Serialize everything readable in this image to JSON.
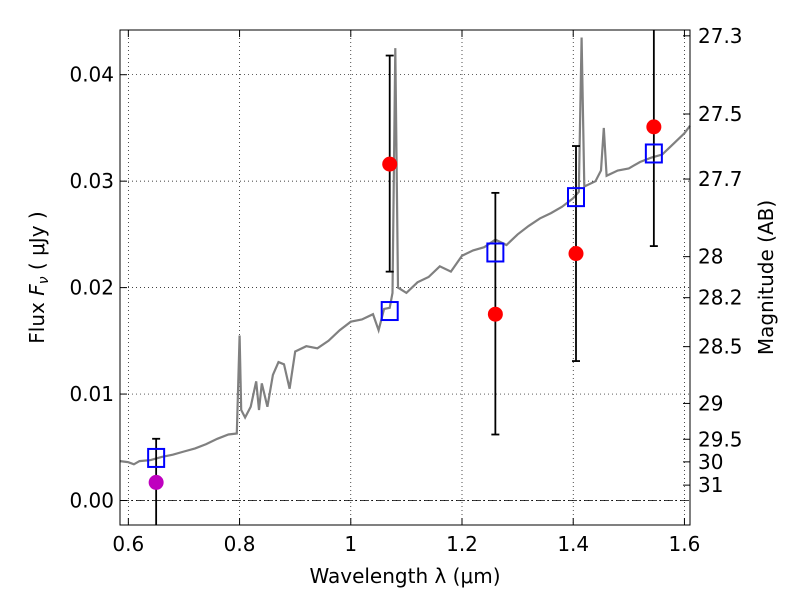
{
  "chart_data": {
    "type": "scatter",
    "xlabel": "Wavelength  λ (μm)",
    "ylabel_parts": [
      "Flux ",
      "F",
      "ν",
      " ( μJy )"
    ],
    "ylabel2": "Magnitude (AB)",
    "xlim": [
      0.585,
      1.61
    ],
    "ylim": [
      -0.0023,
      0.0442
    ],
    "x_ticks": [
      0.6,
      0.8,
      1.0,
      1.2,
      1.4,
      1.6
    ],
    "x_tick_labels": [
      "0.6",
      "0.8",
      "1",
      "1.2",
      "1.4",
      "1.6"
    ],
    "y_ticks": [
      0.0,
      0.01,
      0.02,
      0.03,
      0.04
    ],
    "y_tick_labels": [
      "0.00",
      "0.01",
      "0.02",
      "0.03",
      "0.04"
    ],
    "mag_ticks": [
      27.3,
      27.5,
      27.7,
      28,
      28.2,
      28.5,
      29,
      29.5,
      30,
      31
    ],
    "mag_tick_labels": [
      "27.3",
      "27.5",
      "27.7",
      "28",
      "28.2",
      "28.5",
      "29",
      "29.5",
      "30",
      "31"
    ],
    "grid": true,
    "colors": {
      "spectrum": "#808080",
      "model_box": "#0000ff",
      "observed": "#ff0000",
      "upper_limit": "#bf00bf",
      "errorbar": "#000000"
    },
    "series": [
      {
        "kind": "spectrum",
        "points": [
          [
            0.585,
            0.0037
          ],
          [
            0.6,
            0.0036
          ],
          [
            0.61,
            0.0034
          ],
          [
            0.62,
            0.0037
          ],
          [
            0.64,
            0.0038
          ],
          [
            0.66,
            0.0041
          ],
          [
            0.68,
            0.0043
          ],
          [
            0.7,
            0.0046
          ],
          [
            0.72,
            0.0049
          ],
          [
            0.74,
            0.0053
          ],
          [
            0.76,
            0.0058
          ],
          [
            0.78,
            0.0062
          ],
          [
            0.795,
            0.0063
          ],
          [
            0.8,
            0.0155
          ],
          [
            0.803,
            0.0085
          ],
          [
            0.81,
            0.0078
          ],
          [
            0.82,
            0.0088
          ],
          [
            0.83,
            0.0112
          ],
          [
            0.835,
            0.0085
          ],
          [
            0.84,
            0.011
          ],
          [
            0.85,
            0.0088
          ],
          [
            0.86,
            0.0118
          ],
          [
            0.87,
            0.013
          ],
          [
            0.88,
            0.0128
          ],
          [
            0.89,
            0.0105
          ],
          [
            0.9,
            0.014
          ],
          [
            0.92,
            0.0145
          ],
          [
            0.94,
            0.0143
          ],
          [
            0.96,
            0.015
          ],
          [
            0.98,
            0.016
          ],
          [
            1.0,
            0.0168
          ],
          [
            1.02,
            0.017
          ],
          [
            1.04,
            0.0175
          ],
          [
            1.05,
            0.016
          ],
          [
            1.06,
            0.018
          ],
          [
            1.07,
            0.0181
          ],
          [
            1.075,
            0.0195
          ],
          [
            1.08,
            0.0425
          ],
          [
            1.085,
            0.02
          ],
          [
            1.1,
            0.0195
          ],
          [
            1.12,
            0.0205
          ],
          [
            1.14,
            0.021
          ],
          [
            1.16,
            0.022
          ],
          [
            1.18,
            0.0215
          ],
          [
            1.2,
            0.023
          ],
          [
            1.22,
            0.0235
          ],
          [
            1.24,
            0.0238
          ],
          [
            1.26,
            0.0245
          ],
          [
            1.28,
            0.024
          ],
          [
            1.3,
            0.025
          ],
          [
            1.32,
            0.0258
          ],
          [
            1.34,
            0.0265
          ],
          [
            1.36,
            0.027
          ],
          [
            1.38,
            0.0276
          ],
          [
            1.4,
            0.0284
          ],
          [
            1.41,
            0.029
          ],
          [
            1.415,
            0.0435
          ],
          [
            1.42,
            0.0295
          ],
          [
            1.44,
            0.03
          ],
          [
            1.45,
            0.031
          ],
          [
            1.455,
            0.035
          ],
          [
            1.46,
            0.0305
          ],
          [
            1.48,
            0.031
          ],
          [
            1.5,
            0.0312
          ],
          [
            1.52,
            0.0318
          ],
          [
            1.54,
            0.0322
          ],
          [
            1.56,
            0.0325
          ],
          [
            1.58,
            0.0335
          ],
          [
            1.6,
            0.0345
          ],
          [
            1.61,
            0.0352
          ]
        ]
      },
      {
        "kind": "model_boxes",
        "points": [
          [
            0.65,
            0.004
          ],
          [
            1.07,
            0.0178
          ],
          [
            1.26,
            0.0233
          ],
          [
            1.405,
            0.0285
          ],
          [
            1.545,
            0.0326
          ]
        ]
      },
      {
        "kind": "observed",
        "points": [
          {
            "x": 1.07,
            "y": 0.0316,
            "lo": 0.0215,
            "hi": 0.0418
          },
          {
            "x": 1.26,
            "y": 0.0175,
            "lo": 0.0062,
            "hi": 0.0289
          },
          {
            "x": 1.405,
            "y": 0.0232,
            "lo": 0.0131,
            "hi": 0.0333
          },
          {
            "x": 1.545,
            "y": 0.0351,
            "lo": 0.0239,
            "hi": 0.0442
          }
        ]
      },
      {
        "kind": "upper_limit",
        "points": [
          {
            "x": 0.65,
            "y": 0.0017,
            "lo": -0.0023,
            "hi": 0.0058
          }
        ]
      }
    ]
  }
}
